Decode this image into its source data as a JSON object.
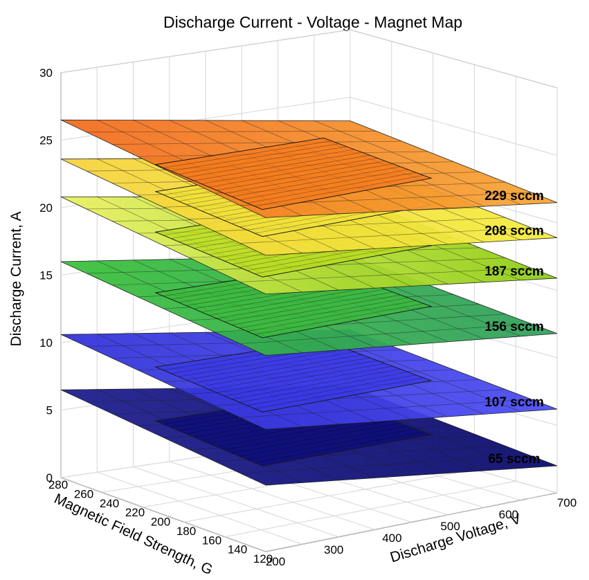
{
  "chart_data": {
    "type": "surface3d",
    "title": "Discharge Current - Voltage - Magnet Map",
    "xlabel": "Discharge Voltage, V",
    "ylabel": "Magnetic Field Strength, G",
    "zlabel": "Discharge Current, A",
    "xlim": [
      200,
      700
    ],
    "ylim": [
      120,
      280
    ],
    "zlim": [
      0,
      30
    ],
    "x_ticks": [
      "200",
      "300",
      "400",
      "500",
      "600",
      "700"
    ],
    "y_ticks": [
      "280",
      "260",
      "240",
      "220",
      "200",
      "180",
      "160",
      "140",
      "120"
    ],
    "z_ticks": [
      "0",
      "5",
      "10",
      "15",
      "20",
      "25",
      "30"
    ],
    "grid": true,
    "series": [
      {
        "name": "65 sccm",
        "color": "#0b0b78",
        "label_color": "#c8c8c8",
        "plane_current": [
          6.5,
          2.0
        ],
        "measured_current": 4.5
      },
      {
        "name": "107 sccm",
        "color": "#3a3ae6",
        "label_color": "#c8c8c8",
        "plane_current": [
          10.6,
          6.2
        ],
        "measured_current": 8.5
      },
      {
        "name": "156 sccm",
        "color": "#3cba3c",
        "label_color": "#000000",
        "plane_current": [
          16.0,
          11.8
        ],
        "measured_current": 14.0
      },
      {
        "name": "187 sccm",
        "color": "#b9dc1e",
        "label_color": "#000000",
        "plane_current": [
          20.8,
          15.9
        ],
        "measured_current": 18.5
      },
      {
        "name": "208 sccm",
        "color": "#f2e23a",
        "label_color": "#000000",
        "plane_current": [
          23.6,
          18.9
        ],
        "measured_current": 21.5
      },
      {
        "name": "229 sccm",
        "color": "#f47a1e",
        "label_color": "#000000",
        "plane_current": [
          26.5,
          21.5
        ],
        "measured_current": 23.5
      }
    ]
  }
}
